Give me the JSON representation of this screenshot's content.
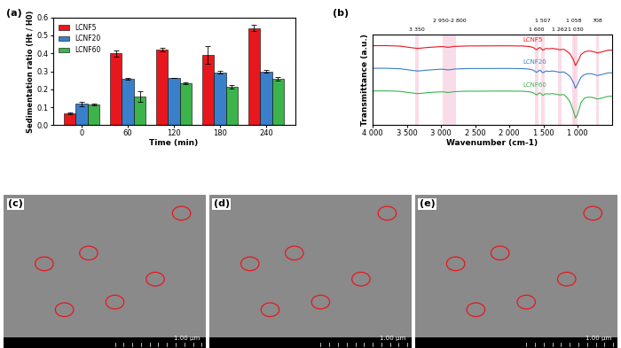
{
  "chart_data": [
    {
      "type": "bar",
      "title": "(a)",
      "x_label": "Time (min)",
      "y_label": "Sedimentation ratio (Ht / H0)",
      "categories": [
        "0",
        "60",
        "120",
        "180",
        "240"
      ],
      "series": [
        {
          "name": "LCNF5",
          "color": "#e8171d",
          "values": [
            0.065,
            0.4,
            0.42,
            0.39,
            0.54
          ],
          "errors": [
            0.005,
            0.018,
            0.01,
            0.05,
            0.018
          ]
        },
        {
          "name": "LCNF20",
          "color": "#3a7fc9",
          "values": [
            0.12,
            0.26,
            0.265,
            0.295,
            0.3
          ],
          "errors": [
            0.012,
            0.005,
            0.0,
            0.006,
            0.006
          ]
        },
        {
          "name": "LCNF60",
          "color": "#3cb44b",
          "values": [
            0.115,
            0.16,
            0.235,
            0.215,
            0.26
          ],
          "errors": [
            0.006,
            0.03,
            0.006,
            0.01,
            0.01
          ]
        }
      ],
      "ylim": [
        0.0,
        0.6
      ],
      "yticks": [
        0.0,
        0.1,
        0.2,
        0.3,
        0.4,
        0.5,
        0.6
      ],
      "legend": "upper left"
    },
    {
      "type": "line",
      "title": "(b)",
      "x_label": "Wavenumber (cm-1)",
      "y_label": "Transmittance (a.u.)",
      "x": [
        4000,
        3800,
        3600,
        3500,
        3400,
        3350,
        3300,
        3200,
        3000,
        2950,
        2900,
        2850,
        2800,
        2600,
        2400,
        2200,
        2000,
        1800,
        1700,
        1650,
        1600,
        1550,
        1507,
        1460,
        1420,
        1370,
        1320,
        1262,
        1200,
        1160,
        1110,
        1058,
        1030,
        1000,
        950,
        900,
        850,
        800,
        750,
        708,
        650,
        600,
        550,
        500
      ],
      "series": [
        {
          "name": "LCNF5",
          "color": "#e8171d",
          "values": [
            0.88,
            0.88,
            0.875,
            0.865,
            0.855,
            0.85,
            0.852,
            0.86,
            0.87,
            0.868,
            0.862,
            0.866,
            0.872,
            0.877,
            0.877,
            0.878,
            0.878,
            0.876,
            0.87,
            0.86,
            0.835,
            0.86,
            0.83,
            0.85,
            0.845,
            0.85,
            0.845,
            0.835,
            0.84,
            0.82,
            0.79,
            0.72,
            0.66,
            0.7,
            0.78,
            0.81,
            0.82,
            0.82,
            0.81,
            0.8,
            0.81,
            0.82,
            0.83,
            0.83
          ]
        },
        {
          "name": "LCNF20",
          "color": "#3a7fc9",
          "values": [
            0.63,
            0.63,
            0.625,
            0.615,
            0.605,
            0.6,
            0.602,
            0.61,
            0.62,
            0.618,
            0.612,
            0.616,
            0.622,
            0.627,
            0.627,
            0.628,
            0.628,
            0.626,
            0.62,
            0.61,
            0.585,
            0.61,
            0.58,
            0.6,
            0.595,
            0.6,
            0.595,
            0.585,
            0.59,
            0.57,
            0.54,
            0.47,
            0.41,
            0.45,
            0.53,
            0.56,
            0.57,
            0.57,
            0.56,
            0.55,
            0.56,
            0.57,
            0.58,
            0.58
          ]
        },
        {
          "name": "LCNF60",
          "color": "#3cb44b",
          "values": [
            0.38,
            0.38,
            0.375,
            0.365,
            0.355,
            0.35,
            0.352,
            0.36,
            0.37,
            0.368,
            0.362,
            0.366,
            0.372,
            0.377,
            0.377,
            0.378,
            0.378,
            0.376,
            0.37,
            0.36,
            0.335,
            0.36,
            0.33,
            0.35,
            0.345,
            0.35,
            0.345,
            0.335,
            0.34,
            0.31,
            0.26,
            0.15,
            0.08,
            0.12,
            0.25,
            0.3,
            0.31,
            0.31,
            0.3,
            0.29,
            0.3,
            0.31,
            0.32,
            0.32
          ]
        }
      ],
      "xlim": [
        4000,
        500
      ],
      "xticks": [
        {
          "value": 4000,
          "label": "4 000"
        },
        {
          "value": 3500,
          "label": "3 500"
        },
        {
          "value": 3000,
          "label": "3 000"
        },
        {
          "value": 2500,
          "label": "2 500"
        },
        {
          "value": 2000,
          "label": "2 000"
        },
        {
          "value": 1500,
          "label": "1 500"
        },
        {
          "value": 1000,
          "label": "1 000"
        }
      ],
      "ylim": [
        0,
        1
      ],
      "tick_labels": "x",
      "annotations": [
        {
          "text": "3 350",
          "x_from": 3350,
          "x_to": 3350
        },
        {
          "text": "2 950-2 800",
          "x_from": 2950,
          "x_to": 2800
        },
        {
          "text": "1 600",
          "x_from": 1600,
          "x_to": 1600
        },
        {
          "text": "1 507",
          "x_from": 1507,
          "x_to": 1507
        },
        {
          "text": "1 262",
          "x_from": 1262,
          "x_to": 1262
        },
        {
          "text": "1 058",
          "x_from": 1058,
          "x_to": 1058
        },
        {
          "text": "1 030",
          "x_from": 1030,
          "x_to": 1030
        },
        {
          "text": "708",
          "x_from": 708,
          "x_to": 708
        }
      ]
    }
  ],
  "images": [
    {
      "label": "(c)",
      "scale_bar": "1.00 μm"
    },
    {
      "label": "(d)",
      "scale_bar": "1.00 μm"
    },
    {
      "label": "(e)",
      "scale_bar": "1.00 μm"
    }
  ]
}
